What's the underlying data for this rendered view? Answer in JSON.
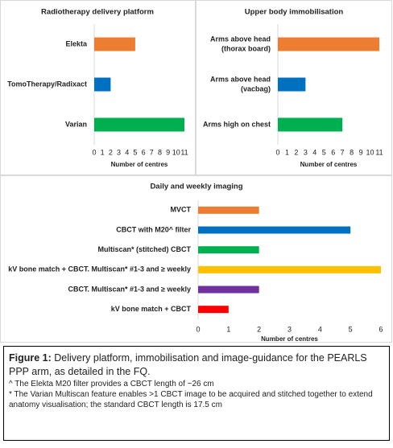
{
  "chart_data": [
    {
      "type": "bar",
      "orientation": "horizontal",
      "title": "Radiotherapy delivery platform",
      "categories": [
        "Elekta",
        "TomoTherapy/Radixact",
        "Varian"
      ],
      "values": [
        5,
        2,
        11
      ],
      "colors": [
        "#ed7d31",
        "#0070c0",
        "#00b050"
      ],
      "xlim": [
        0,
        11
      ],
      "xticks": [
        0,
        1,
        2,
        3,
        4,
        5,
        6,
        7,
        8,
        9,
        10,
        11
      ],
      "xlabel": "Number of centres"
    },
    {
      "type": "bar",
      "orientation": "horizontal",
      "title": "Upper body immobilisation",
      "categories": [
        [
          "Arms above head",
          "(thorax board)"
        ],
        [
          "Arms above head",
          "(vacbag)"
        ],
        "Arms high on chest"
      ],
      "values": [
        11,
        3,
        7
      ],
      "colors": [
        "#ed7d31",
        "#0070c0",
        "#00b050"
      ],
      "xlim": [
        0,
        11
      ],
      "xticks": [
        0,
        1,
        2,
        3,
        4,
        5,
        6,
        7,
        8,
        9,
        10,
        11
      ],
      "xlabel": "Number of centres"
    },
    {
      "type": "bar",
      "orientation": "horizontal",
      "title": "Daily and weekly imaging",
      "categories": [
        "MVCT",
        "CBCT with M20^ filter",
        "Multiscan* (stitched) CBCT",
        "kV bone match +  CBCT. Multiscan* #1-3 and ≥ weekly",
        "CBCT. Multiscan* #1-3 and ≥ weekly",
        "kV bone match + CBCT"
      ],
      "values": [
        2,
        5,
        2,
        6,
        2,
        1
      ],
      "colors": [
        "#ed7d31",
        "#0070c0",
        "#00b050",
        "#ffc000",
        "#7030a0",
        "#ff0000"
      ],
      "xlim": [
        0,
        6
      ],
      "xticks": [
        0,
        1,
        2,
        3,
        4,
        5,
        6
      ],
      "xlabel": "Number of centres"
    }
  ],
  "caption": {
    "label": "Figure 1:",
    "text": " Delivery platform, immobilisation and image-guidance for the PEARLS PPP arm, as detailed in the FQ.",
    "notes": [
      "^ The Elekta M20 filter provides a CBCT length of ~26 cm",
      "* The Varian Multiscan feature enables >1 CBCT image to be acquired and stitched together to extend anatomy visualisation; the standard CBCT length is 17.5 cm"
    ]
  }
}
